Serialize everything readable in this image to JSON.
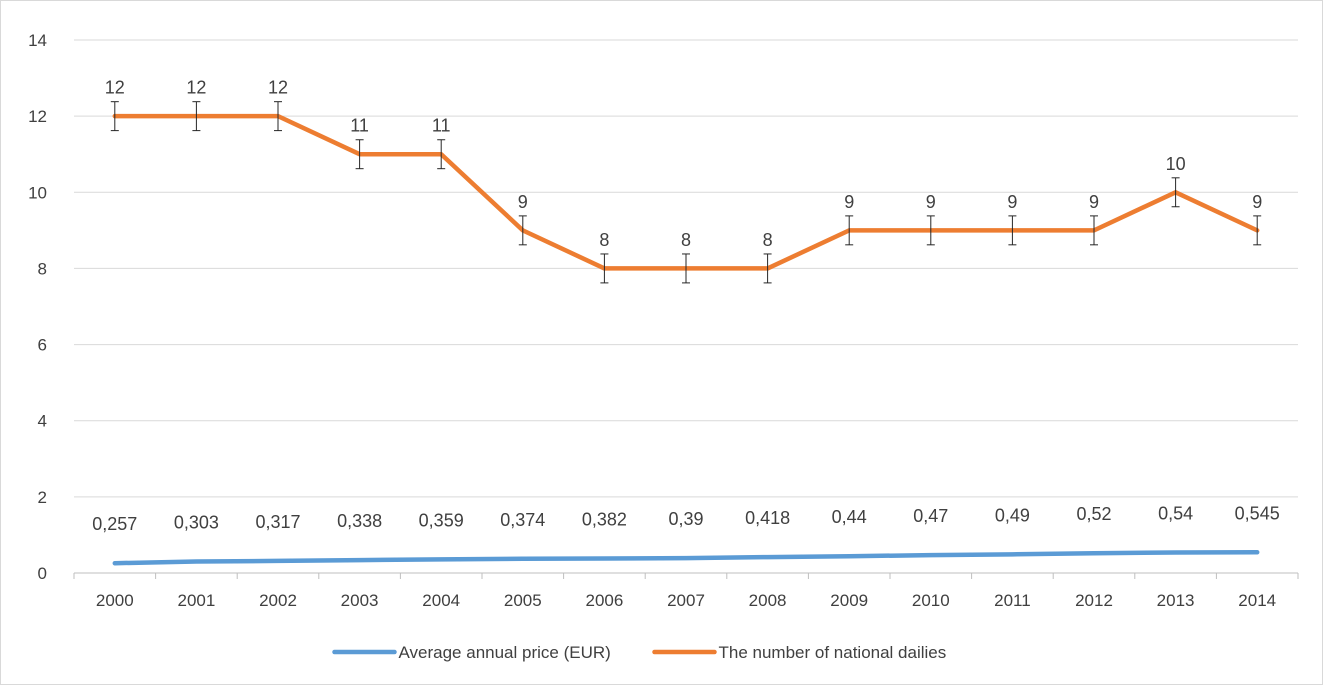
{
  "chart_data": {
    "type": "line",
    "title": "",
    "xlabel": "",
    "ylabel": "",
    "ylim": [
      0,
      14
    ],
    "yticks": [
      "0",
      "2",
      "4",
      "6",
      "8",
      "10",
      "12",
      "14"
    ],
    "categories": [
      "2000",
      "2001",
      "2002",
      "2003",
      "2004",
      "2005",
      "2006",
      "2007",
      "2008",
      "2009",
      "2010",
      "2011",
      "2012",
      "2013",
      "2014"
    ],
    "grid": true,
    "legend_position": "bottom",
    "series": [
      {
        "name": "Average annual price (EUR)",
        "color": "#5b9bd5",
        "values": [
          0.257,
          0.303,
          0.317,
          0.338,
          0.359,
          0.374,
          0.382,
          0.39,
          0.418,
          0.44,
          0.47,
          0.49,
          0.52,
          0.54,
          0.545
        ],
        "labels": [
          "0,257",
          "0,303",
          "0,317",
          "0,338",
          "0,359",
          "0,374",
          "0,382",
          "0,39",
          "0,418",
          "0,44",
          "0,47",
          "0,49",
          "0,52",
          "0,54",
          "0,545"
        ],
        "error_bars": false
      },
      {
        "name": "The number of national dailies",
        "color": "#ed7d31",
        "values": [
          12,
          12,
          12,
          11,
          11,
          9,
          8,
          8,
          8,
          9,
          9,
          9,
          9,
          10,
          9
        ],
        "labels": [
          "12",
          "12",
          "12",
          "11",
          "11",
          "9",
          "8",
          "8",
          "8",
          "9",
          "9",
          "9",
          "9",
          "10",
          "9"
        ],
        "error_bars": true,
        "error_value": 0.38
      }
    ]
  }
}
